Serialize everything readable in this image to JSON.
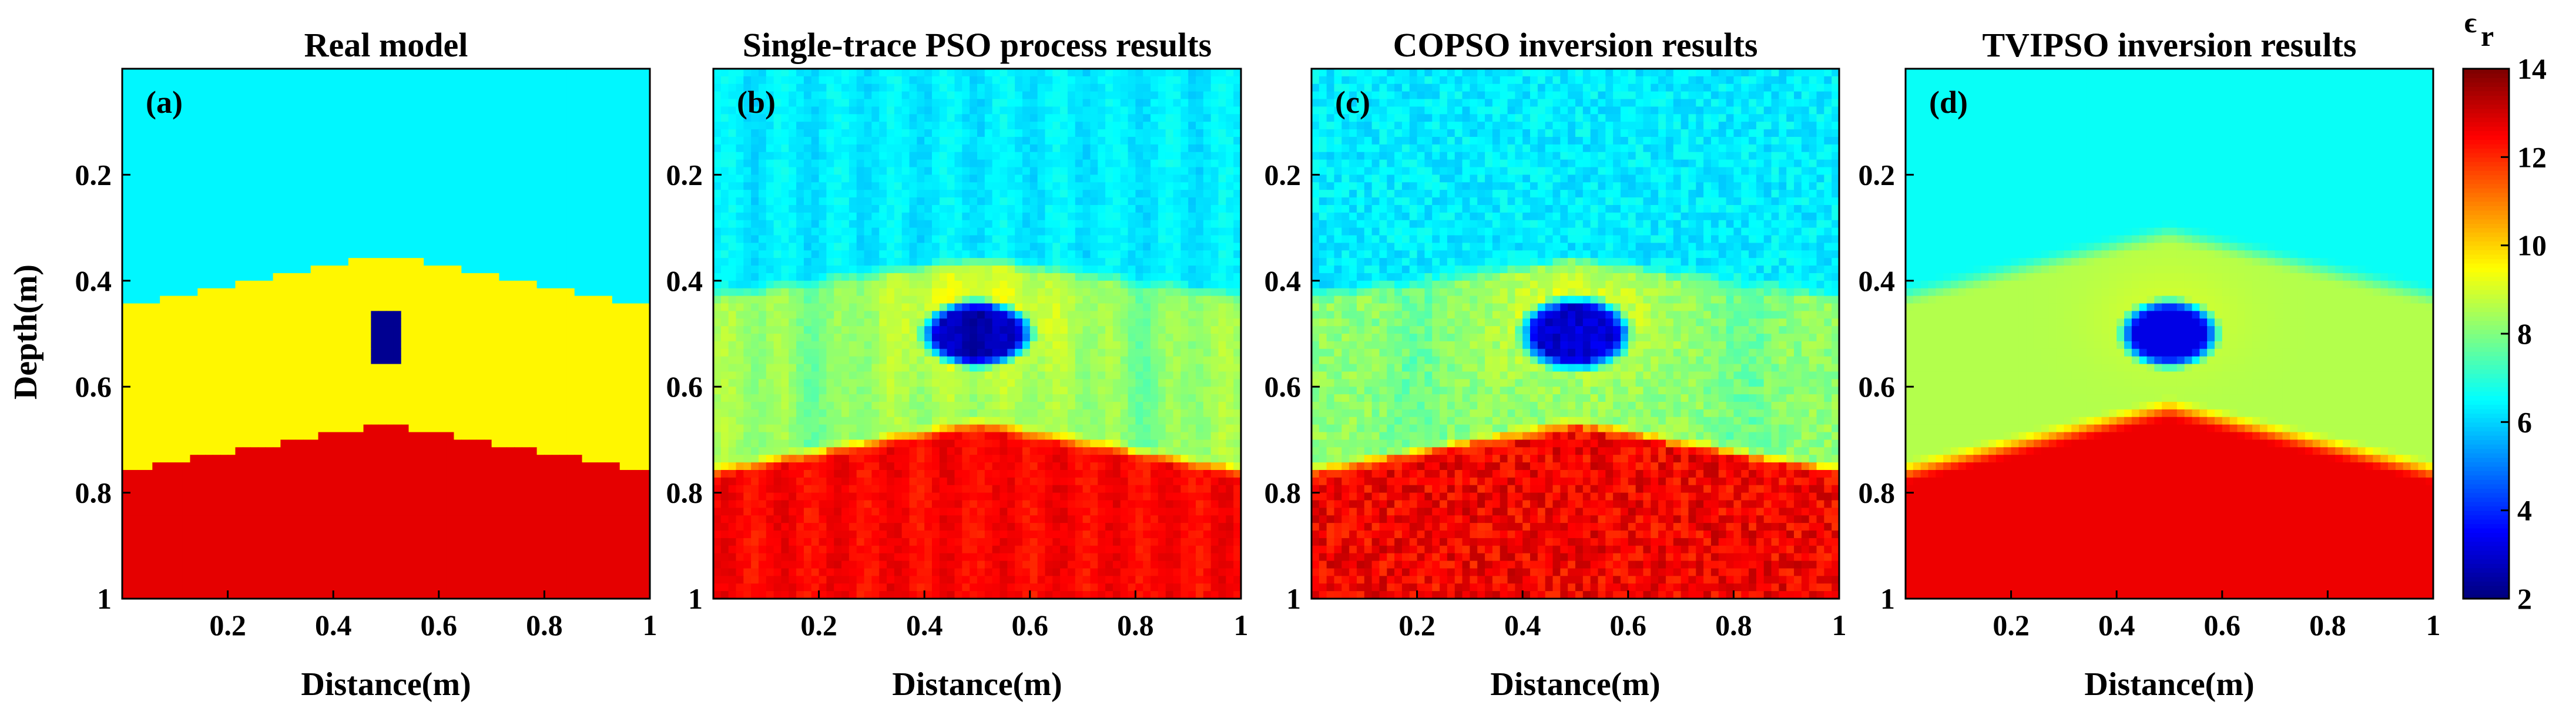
{
  "chart_data": {
    "type": "heatmap",
    "colormap": "jet",
    "colorbar": {
      "label": "ϵ",
      "label_sub": "r",
      "range": [
        2,
        14
      ],
      "ticks": [
        "2",
        "4",
        "6",
        "8",
        "10",
        "12",
        "14"
      ]
    },
    "xlabel": "Distance(m)",
    "ylabel": "Depth(m)",
    "xlim": [
      0,
      1
    ],
    "ylim": [
      0,
      1
    ],
    "x_ticks": [
      "0.2",
      "0.4",
      "0.6",
      "0.8",
      "1"
    ],
    "y_ticks": [
      "0.2",
      "0.4",
      "0.6",
      "0.8",
      "1"
    ],
    "panels": [
      {
        "tag": "(a)",
        "title": "Real model",
        "style": "blocky",
        "layers": [
          {
            "name": "top layer",
            "permittivity": 6.4
          },
          {
            "name": "middle layer",
            "permittivity": 9.6
          },
          {
            "name": "bottom layer",
            "permittivity": 12.8
          }
        ],
        "interface_1": {
          "edge_depth": 0.45,
          "apex_depth": 0.35,
          "apex_x": 0.5
        },
        "interface_2": {
          "edge_depth": 0.76,
          "apex_depth": 0.67,
          "apex_x": 0.5
        },
        "anomaly": {
          "x_range": [
            0.465,
            0.535
          ],
          "depth_range": [
            0.46,
            0.56
          ],
          "permittivity": 2.2
        }
      },
      {
        "tag": "(b)",
        "title": "Single-trace PSO process results",
        "style": "striped",
        "layers": [
          {
            "name": "top layer",
            "permittivity": 6.3
          },
          {
            "name": "middle layer",
            "permittivity": 8.4
          },
          {
            "name": "bottom layer",
            "permittivity": 12.5
          }
        ],
        "interface_1": {
          "edge_depth": 0.43,
          "apex_depth": 0.36,
          "apex_x": 0.5
        },
        "interface_2": {
          "edge_depth": 0.76,
          "apex_depth": 0.67,
          "apex_x": 0.5
        },
        "anomaly": {
          "center": [
            0.5,
            0.5
          ],
          "radius": [
            0.09,
            0.055
          ],
          "permittivity": 2.6
        }
      },
      {
        "tag": "(c)",
        "title": "COPSO inversion results",
        "style": "noisy",
        "layers": [
          {
            "name": "top layer",
            "permittivity": 6.3
          },
          {
            "name": "middle layer",
            "permittivity": 8.2
          },
          {
            "name": "bottom layer",
            "permittivity": 12.6
          }
        ],
        "interface_1": {
          "edge_depth": 0.43,
          "apex_depth": 0.36,
          "apex_x": 0.5
        },
        "interface_2": {
          "edge_depth": 0.76,
          "apex_depth": 0.67,
          "apex_x": 0.5
        },
        "anomaly": {
          "center": [
            0.5,
            0.5
          ],
          "radius": [
            0.09,
            0.06
          ],
          "permittivity": 3.0
        }
      },
      {
        "tag": "(d)",
        "title": "TVIPSO inversion results",
        "style": "smooth",
        "layers": [
          {
            "name": "top layer",
            "permittivity": 6.6
          },
          {
            "name": "middle layer",
            "permittivity": 8.6
          },
          {
            "name": "bottom layer",
            "permittivity": 12.7
          }
        ],
        "interface_1": {
          "edge_depth": 0.43,
          "apex_depth": 0.31,
          "apex_x": 0.5
        },
        "interface_2": {
          "edge_depth": 0.76,
          "apex_depth": 0.64,
          "apex_x": 0.5
        },
        "anomaly": {
          "center": [
            0.5,
            0.5
          ],
          "radius": [
            0.08,
            0.055
          ],
          "permittivity": 3.2
        }
      }
    ]
  }
}
